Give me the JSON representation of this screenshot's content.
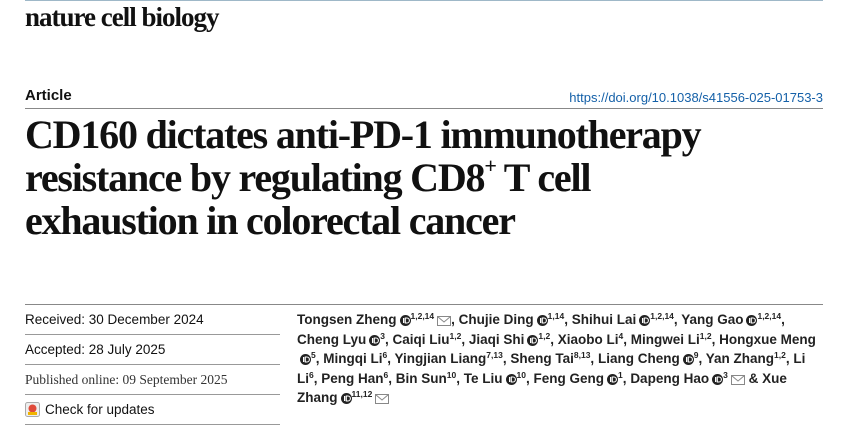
{
  "header": {
    "journal": "nature cell biology"
  },
  "article": {
    "type": "Article",
    "doi": "https://doi.org/10.1038/s41556-025-01753-3",
    "title": {
      "line1": "CD160 dictates anti-PD-1 immunotherapy",
      "line2": "resistance by regulating CD8",
      "sup": "+",
      "line2_end": " T cell",
      "line3": "exhaustion in colorectal cancer"
    }
  },
  "dates": [
    {
      "text": "Received: 30 December 2024"
    },
    {
      "text": "Accepted: 28 July 2025"
    },
    {
      "text": "Published online: 09 September 2025",
      "serif": true
    }
  ],
  "updates": "Check for updates",
  "authors": [
    {
      "name": "Tongsen Zheng",
      "orcid": true,
      "sup": "1,2,14",
      "email": true,
      "punct": ","
    },
    {
      "name": "Chujie Ding",
      "orcid": true,
      "sup": "1,14",
      "punct": ","
    },
    {
      "name": "Shihui Lai",
      "orcid": true,
      "sup": "1,2,14",
      "punct": ","
    },
    {
      "name": "Yang Gao",
      "orcid": true,
      "sup": "1,2,14",
      "punct": ","
    },
    {
      "name": "Cheng Lyu",
      "orcid": true,
      "sup": "3",
      "punct": ","
    },
    {
      "name": "Caiqi Liu",
      "sup": "1,2",
      "punct": ","
    },
    {
      "name": "Jiaqi Shi",
      "orcid": true,
      "sup": "1,2",
      "punct": ","
    },
    {
      "name": "Xiaobo Li",
      "sup": "4",
      "punct": ","
    },
    {
      "name": "Mingwei Li",
      "sup": "1,2",
      "punct": ","
    },
    {
      "name": "Hongxue Meng",
      "orcid": true,
      "sup": "5",
      "punct": ","
    },
    {
      "name": "Mingqi Li",
      "sup": "6",
      "punct": ","
    },
    {
      "name": "Yingjian Liang",
      "sup": "7,13",
      "punct": ","
    },
    {
      "name": "Sheng Tai",
      "sup": "8,13",
      "punct": ","
    },
    {
      "name": "Liang Cheng",
      "orcid": true,
      "sup": "9",
      "punct": ","
    },
    {
      "name": "Yan Zhang",
      "sup": "1,2",
      "punct": ","
    },
    {
      "name": "Li Li",
      "sup": "6",
      "punct": ","
    },
    {
      "name": "Peng Han",
      "sup": "6",
      "punct": ","
    },
    {
      "name": "Bin Sun",
      "sup": "10",
      "punct": ","
    },
    {
      "name": "Te Liu",
      "orcid": true,
      "sup": "10",
      "punct": ","
    },
    {
      "name": "Feng Geng",
      "orcid": true,
      "sup": "1",
      "punct": ","
    },
    {
      "name": "Dapeng Hao",
      "orcid": true,
      "sup": "3",
      "email": true
    },
    {
      "conj": "&",
      "name": "Xue Zhang",
      "orcid": true,
      "sup": "11,12",
      "email": true
    }
  ]
}
